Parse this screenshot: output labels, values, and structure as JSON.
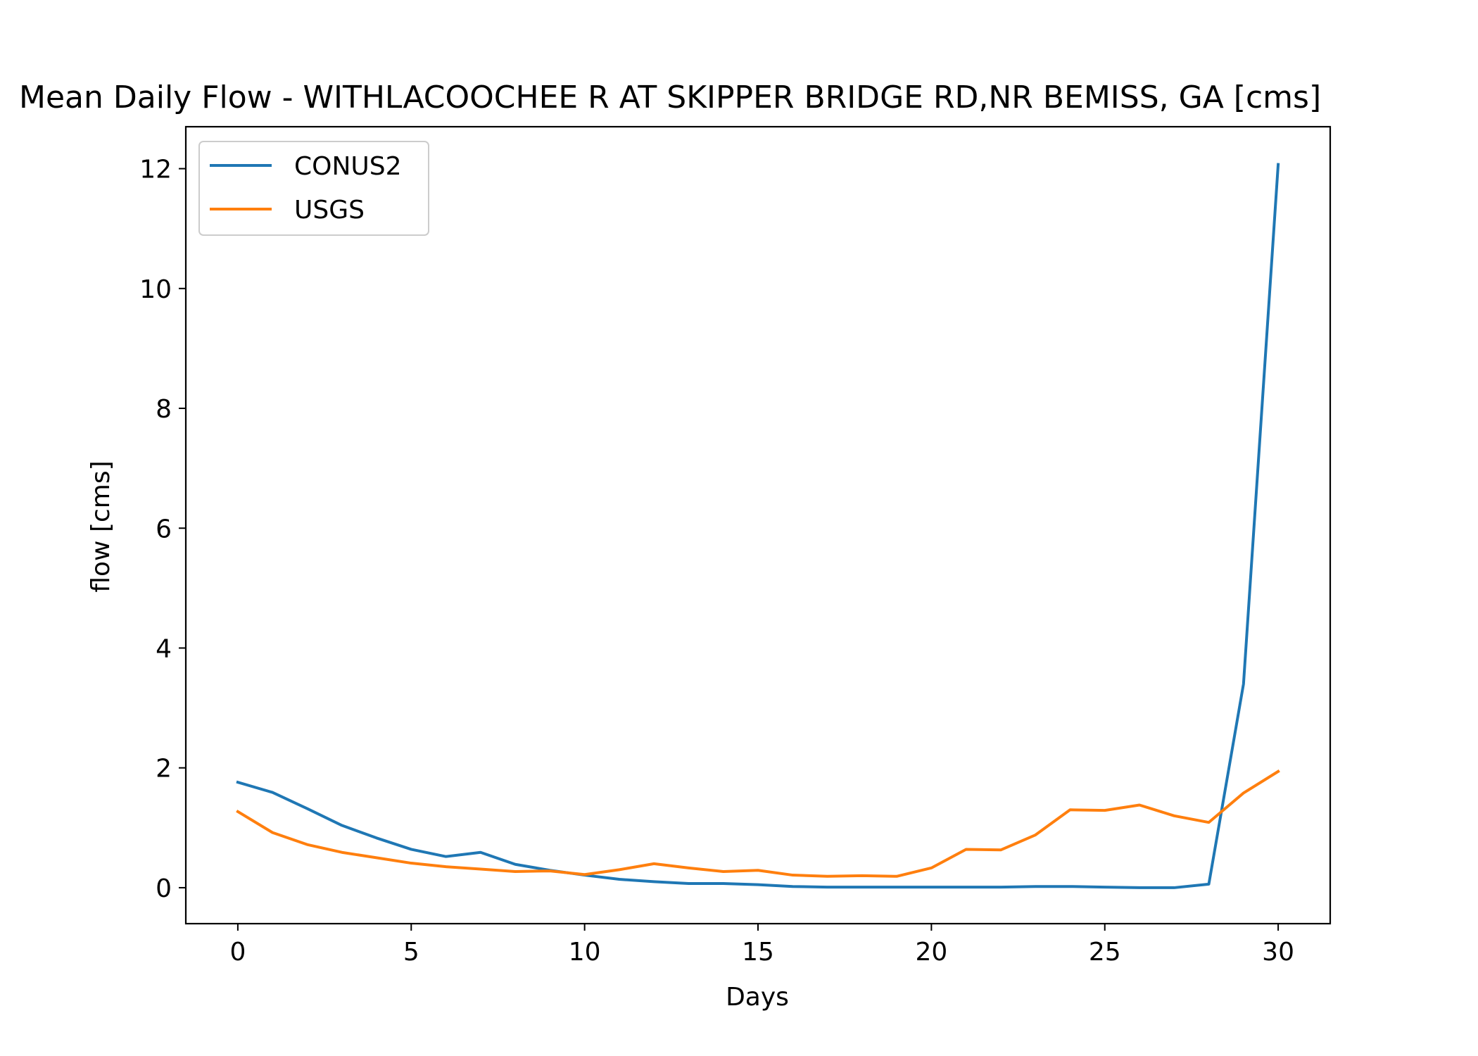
{
  "chart_data": {
    "type": "line",
    "title": "Mean Daily Flow - WITHLACOOCHEE R AT SKIPPER BRIDGE RD,NR BEMISS, GA [cms]",
    "xlabel": "Days",
    "ylabel": "flow [cms]",
    "xlim": [
      -1.5,
      31.5
    ],
    "ylim": [
      -0.6,
      12.7
    ],
    "xticks": [
      0,
      5,
      10,
      15,
      20,
      25,
      30
    ],
    "yticks": [
      0,
      2,
      4,
      6,
      8,
      10,
      12
    ],
    "xtick_labels": [
      "0",
      "5",
      "10",
      "15",
      "20",
      "25",
      "30"
    ],
    "ytick_labels": [
      "0",
      "2",
      "4",
      "6",
      "8",
      "10",
      "12"
    ],
    "grid": false,
    "legend_position": "upper left",
    "x": [
      0,
      1,
      2,
      3,
      4,
      5,
      6,
      7,
      8,
      9,
      10,
      11,
      12,
      13,
      14,
      15,
      16,
      17,
      18,
      19,
      20,
      21,
      22,
      23,
      24,
      25,
      26,
      27,
      28,
      29,
      30
    ],
    "series": [
      {
        "name": "CONUS2",
        "color": "#1f77b4",
        "values": [
          1.76,
          1.59,
          1.32,
          1.04,
          0.83,
          0.64,
          0.52,
          0.59,
          0.39,
          0.29,
          0.21,
          0.14,
          0.1,
          0.07,
          0.07,
          0.05,
          0.02,
          0.01,
          0.01,
          0.01,
          0.01,
          0.01,
          0.01,
          0.02,
          0.02,
          0.01,
          0.0,
          0.0,
          0.06,
          3.4,
          12.07
        ]
      },
      {
        "name": "USGS",
        "color": "#ff7f0e",
        "values": [
          1.27,
          0.92,
          0.72,
          0.59,
          0.5,
          0.41,
          0.35,
          0.31,
          0.27,
          0.28,
          0.22,
          0.3,
          0.4,
          0.33,
          0.27,
          0.29,
          0.21,
          0.19,
          0.2,
          0.19,
          0.33,
          0.64,
          0.63,
          0.88,
          1.3,
          1.29,
          1.38,
          1.2,
          1.09,
          1.58,
          1.94
        ]
      }
    ]
  }
}
